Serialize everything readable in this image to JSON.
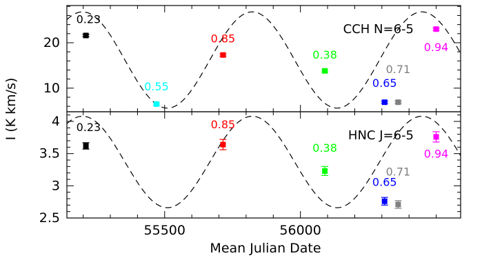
{
  "chart_data": {
    "type": "scatter",
    "xlabel": "Mean Julian Date",
    "ylabel": "I (K km/s)",
    "xlim": [
      55140,
      56590
    ],
    "xticks": [
      55500,
      56000
    ],
    "panels": [
      {
        "label": "CCH N=6-5",
        "ylim": [
          4.8,
          28.2
        ],
        "yticks": [
          10,
          20
        ],
        "points": [
          {
            "x": 55210,
            "y": 21.6,
            "err": 0.25,
            "phase": "0.23",
            "color": "#000000"
          },
          {
            "x": 55470,
            "y": 6.5,
            "err": 0.25,
            "phase": "0.55",
            "color": "#00ffff"
          },
          {
            "x": 55715,
            "y": 17.3,
            "err": 0.25,
            "phase": "0.85",
            "color": "#ff0000"
          },
          {
            "x": 56090,
            "y": 13.8,
            "err": 0.25,
            "phase": "0.38",
            "color": "#00ff00"
          },
          {
            "x": 56310,
            "y": 6.9,
            "err": 0.25,
            "phase": "0.65",
            "color": "#0000ff"
          },
          {
            "x": 56360,
            "y": 6.9,
            "err": 0.25,
            "phase": "0.71",
            "color": "#808080"
          },
          {
            "x": 56500,
            "y": 23.0,
            "err": 0.25,
            "phase": "0.94",
            "color": "#ff00ff"
          }
        ],
        "model": {
          "mean": 16.2,
          "amplitude": 10.6,
          "period": 625,
          "t_min": 55510
        }
      },
      {
        "label": "HNC J=6-5",
        "ylim": [
          2.5,
          4.15
        ],
        "yticks": [
          2.5,
          3,
          3.5,
          4
        ],
        "points": [
          {
            "x": 55210,
            "y": 3.62,
            "err": 0.05,
            "phase": "0.23",
            "color": "#000000"
          },
          {
            "x": 55715,
            "y": 3.64,
            "err": 0.08,
            "phase": "0.85",
            "color": "#ff0000"
          },
          {
            "x": 56090,
            "y": 3.23,
            "err": 0.07,
            "phase": "0.38",
            "color": "#00ff00"
          },
          {
            "x": 56310,
            "y": 2.76,
            "err": 0.06,
            "phase": "0.65",
            "color": "#0000ff"
          },
          {
            "x": 56360,
            "y": 2.71,
            "err": 0.06,
            "phase": "0.71",
            "color": "#808080"
          },
          {
            "x": 56500,
            "y": 3.76,
            "err": 0.08,
            "phase": "0.94",
            "color": "#ff00ff"
          }
        ],
        "model": {
          "mean": 3.37,
          "amplitude": 0.71,
          "period": 625,
          "t_min": 55510
        }
      }
    ]
  }
}
